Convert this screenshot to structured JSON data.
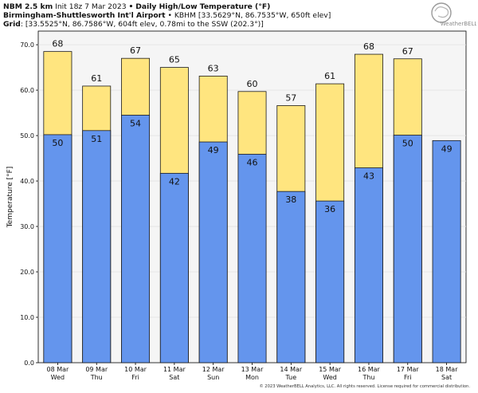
{
  "header": {
    "line1_model": "NBM 2.5 km",
    "line1_init": "Init 18z 7 Mar 2023",
    "line1_sep": "•",
    "line1_title": "Daily High/Low Temperature (°F)",
    "line2_station": "Birmingham-Shuttlesworth Int'l Airport",
    "line2_detail": "• KBHM [33.5629°N, 86.7535°W, 650ft elev]",
    "line3_label": "Grid",
    "line3_detail": ": [33.5525°N, 86.7586°W, 604ft elev, 0.78mi to the SSW (202.3°)]"
  },
  "logo": {
    "text": "WeatherBELL"
  },
  "footer": {
    "copyright": "© 2023 WeatherBELL Analytics, LLC. All rights reserved. License required for commercial distribution."
  },
  "colors": {
    "high": "#ffe57f",
    "low": "#6495ed",
    "plot_bg": "#f5f5f5",
    "outline": "#1a1a1a"
  },
  "chart_data": {
    "type": "bar",
    "ylabel": "Temperature [°F]",
    "ylim": [
      0,
      73
    ],
    "yticks": [
      "0.0",
      "10.0",
      "20.0",
      "30.0",
      "40.0",
      "50.0",
      "60.0",
      "70.0"
    ],
    "categories": [
      "08 Mar",
      "09 Mar",
      "10 Mar",
      "11 Mar",
      "12 Mar",
      "13 Mar",
      "14 Mar",
      "15 Mar",
      "16 Mar",
      "17 Mar",
      "18 Mar"
    ],
    "weekdays": [
      "Wed",
      "Thu",
      "Fri",
      "Sat",
      "Sun",
      "Mon",
      "Tue",
      "Wed",
      "Thu",
      "Fri",
      "Sat"
    ],
    "series": [
      {
        "key": "high",
        "values": [
          68.5,
          60.9,
          67.0,
          65.0,
          63.1,
          59.7,
          56.6,
          61.4,
          67.9,
          66.9,
          null
        ],
        "labels": [
          "68",
          "61",
          "67",
          "65",
          "63",
          "60",
          "57",
          "61",
          "68",
          "67",
          ""
        ]
      },
      {
        "key": "low",
        "values": [
          50.2,
          51.1,
          54.5,
          41.7,
          48.6,
          45.9,
          37.7,
          35.6,
          42.9,
          50.1,
          48.9
        ],
        "labels": [
          "50",
          "51",
          "54",
          "42",
          "49",
          "46",
          "38",
          "36",
          "43",
          "50",
          "49"
        ]
      }
    ]
  }
}
